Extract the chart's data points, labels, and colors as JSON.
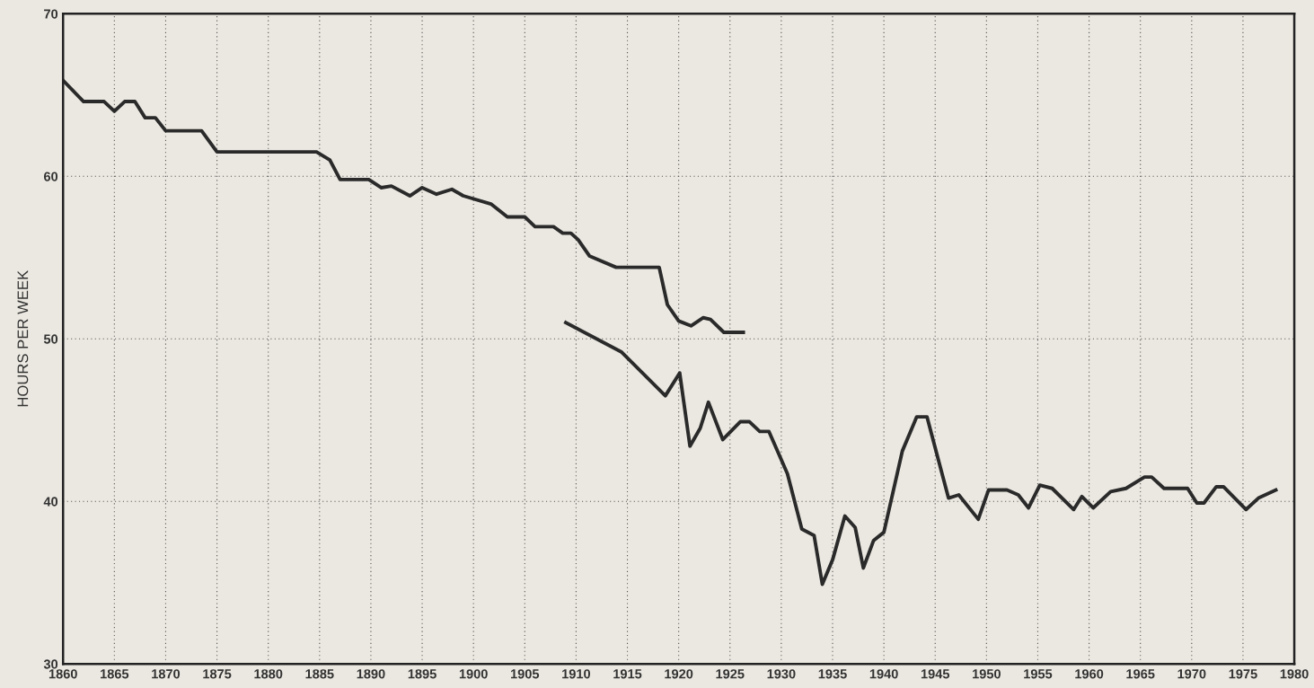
{
  "chart_data": {
    "type": "line",
    "ylabel": "HOURS PER WEEK",
    "series": [
      {
        "color": "#2a2a2a",
        "x": [
          1860,
          1862,
          1864,
          1865,
          1866,
          1867,
          1868,
          1869,
          1870,
          1873.5,
          1875,
          1884.7,
          1886,
          1887,
          1889.8,
          1891,
          1892,
          1893.8,
          1895,
          1896.4,
          1897.9,
          1899,
          1901.7,
          1903.3,
          1905,
          1906,
          1907.8,
          1908.7,
          1909.5,
          1910.2,
          1911.3,
          1913.9,
          1918.1,
          1918.9,
          1920,
          1921.2,
          1922.4,
          1923.1,
          1924.4,
          1926.3
        ],
        "values": [
          65.9,
          64.6,
          64.6,
          64.0,
          64.6,
          64.6,
          63.6,
          63.6,
          62.8,
          62.8,
          61.5,
          61.5,
          61.0,
          59.8,
          59.8,
          59.3,
          59.4,
          58.8,
          59.3,
          58.9,
          59.2,
          58.8,
          58.3,
          57.5,
          57.5,
          56.9,
          56.9,
          56.5,
          56.5,
          56.1,
          55.1,
          54.4,
          54.4,
          52.1,
          51.1,
          50.8,
          51.3,
          51.2,
          50.4,
          50.4
        ]
      },
      {
        "color": "#2a2a2a",
        "x": [
          1909,
          1914.4,
          1918.7,
          1920.1,
          1921.1,
          1922.1,
          1922.9,
          1924.3,
          1926,
          1926.9,
          1927.9,
          1928.8,
          1930.6,
          1932,
          1933.2,
          1934,
          1935,
          1936.2,
          1937.2,
          1938,
          1939,
          1940,
          1941.8,
          1943.2,
          1944.2,
          1946.3,
          1947.3,
          1949.2,
          1950.2,
          1952,
          1953.1,
          1954.1,
          1955.2,
          1956.4,
          1958.5,
          1959.3,
          1960.4,
          1962.1,
          1963.6,
          1965.4,
          1966.1,
          1967.3,
          1969.6,
          1970.5,
          1971.2,
          1972.4,
          1973.1,
          1975.3,
          1976.5,
          1978.2
        ],
        "values": [
          51.0,
          49.2,
          46.5,
          47.9,
          43.4,
          44.5,
          46.1,
          43.8,
          44.9,
          44.9,
          44.3,
          44.3,
          41.7,
          38.3,
          37.9,
          34.9,
          36.4,
          39.1,
          38.4,
          35.9,
          37.6,
          38.1,
          43.1,
          45.2,
          45.2,
          40.2,
          40.4,
          38.9,
          40.7,
          40.7,
          40.4,
          39.6,
          41.0,
          40.8,
          39.5,
          40.3,
          39.6,
          40.6,
          40.8,
          41.5,
          41.5,
          40.8,
          40.8,
          39.9,
          39.9,
          40.9,
          40.9,
          39.5,
          40.2,
          40.7
        ]
      }
    ],
    "xlim": [
      1860,
      1980
    ],
    "xticks": [
      1860,
      1865,
      1870,
      1875,
      1880,
      1885,
      1890,
      1895,
      1900,
      1905,
      1910,
      1915,
      1920,
      1925,
      1930,
      1935,
      1940,
      1945,
      1950,
      1955,
      1960,
      1965,
      1970,
      1975,
      1980
    ],
    "ylim": [
      30,
      70
    ],
    "yticks": [
      30,
      40,
      50,
      60,
      70
    ],
    "grid": true,
    "marker": "none",
    "line_style": "solid"
  }
}
